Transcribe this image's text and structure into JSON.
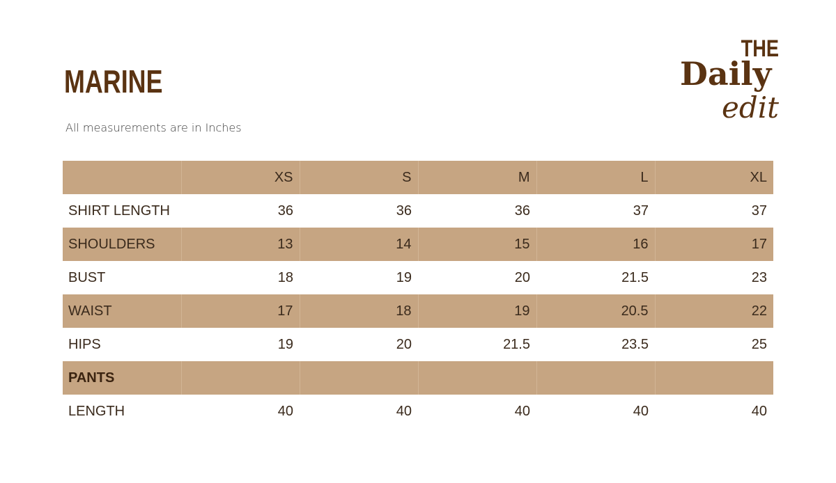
{
  "header": {
    "title": "MARINE",
    "subtitle": "All measurements are in Inches"
  },
  "logo": {
    "line1": "THE",
    "line2": "Daily",
    "line3": "edit"
  },
  "colors": {
    "brand_brown": "#5a3312",
    "row_shade": "#c6a582"
  },
  "table": {
    "sizes": [
      "XS",
      "S",
      "M",
      "L",
      "XL"
    ],
    "rows": [
      {
        "label": "SHIRT LENGTH",
        "values": [
          "36",
          "36",
          "36",
          "37",
          "37"
        ]
      },
      {
        "label": "SHOULDERS",
        "values": [
          "13",
          "14",
          "15",
          "16",
          "17"
        ]
      },
      {
        "label": "BUST",
        "values": [
          "18",
          "19",
          "20",
          "21.5",
          "23"
        ]
      },
      {
        "label": "WAIST",
        "values": [
          "17",
          "18",
          "19",
          "20.5",
          "22"
        ]
      },
      {
        "label": "HIPS",
        "values": [
          "19",
          "20",
          "21.5",
          "23.5",
          "25"
        ]
      }
    ],
    "section": {
      "label": "PANTS"
    },
    "pants_rows": [
      {
        "label": "LENGTH",
        "values": [
          "40",
          "40",
          "40",
          "40",
          "40"
        ]
      }
    ]
  }
}
